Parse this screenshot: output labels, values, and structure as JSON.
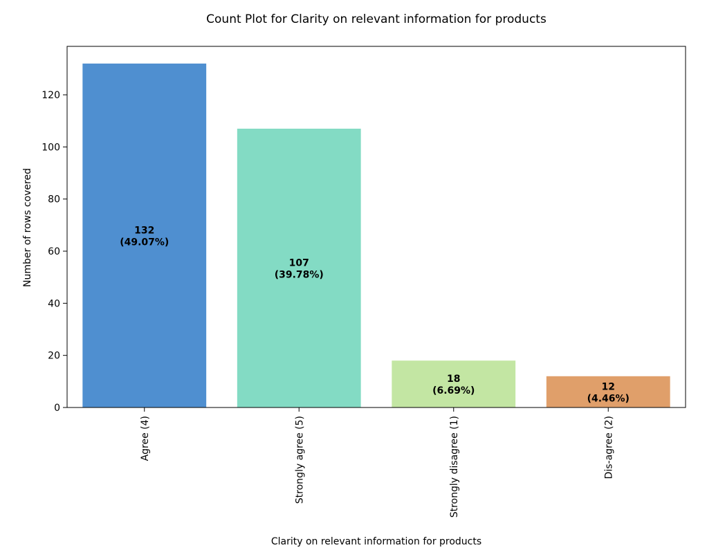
{
  "chart_data": {
    "type": "bar",
    "title": "Count Plot for Clarity on relevant information for products",
    "xlabel": "Clarity on relevant information for products",
    "ylabel": "Number of rows covered",
    "categories": [
      "Agree (4)",
      "Strongly agree (5)",
      "Strongly disagree (1)",
      "Dis-agree (2)"
    ],
    "values": [
      132,
      107,
      18,
      12
    ],
    "percent_labels": [
      "(49.07%)",
      "(39.78%)",
      "(6.69%)",
      "(4.46%)"
    ],
    "colors": [
      "#4f8fd0",
      "#83dbc4",
      "#c3e6a3",
      "#e09f6a"
    ],
    "ylim": [
      0,
      138.6
    ],
    "yticks": [
      0,
      20,
      40,
      60,
      80,
      100,
      120
    ],
    "grid": false
  }
}
